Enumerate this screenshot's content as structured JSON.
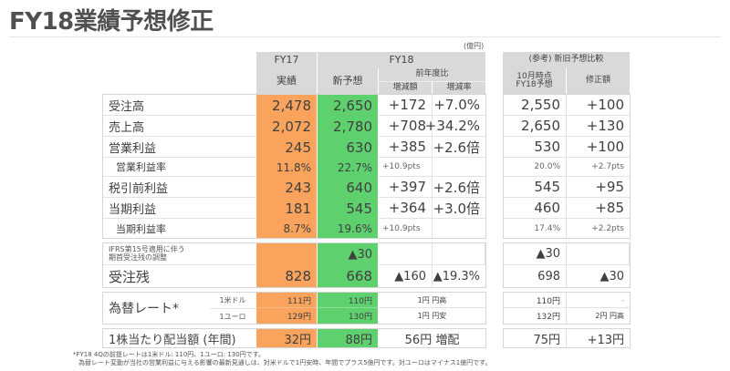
{
  "title": "FY18業績予想修正",
  "unit": "(億円)",
  "header": {
    "fy17": "FY17",
    "fy17_sub": "実績",
    "fy18": "FY18",
    "new_forecast": "新予想",
    "yoy": "前年度比",
    "change_amount": "増減額",
    "change_rate": "増減率",
    "reference": "(参考) 新旧予想比較",
    "oct_forecast_line1": "10月時点",
    "oct_forecast_line2": "FY18予想",
    "revision": "修正額"
  },
  "rows": [
    {
      "label": "受注高",
      "fy17": "2,478",
      "fy18": "2,650",
      "diff": "+172",
      "rate": "+7.0%",
      "oct": "2,550",
      "rev": "+100"
    },
    {
      "label": "売上高",
      "fy17": "2,072",
      "fy18": "2,780",
      "diff": "+708",
      "rate": "+34.2%",
      "oct": "2,650",
      "rev": "+130"
    },
    {
      "label": "営業利益",
      "fy17": "245",
      "fy18": "630",
      "diff": "+385",
      "rate": "+2.6倍",
      "oct": "530",
      "rev": "+100"
    },
    {
      "label": "営業利益率",
      "fy17": "11.8%",
      "fy18": "22.7%",
      "diff": "+10.9pts",
      "rate": "",
      "oct": "20.0%",
      "rev": "+2.7pts"
    },
    {
      "label": "税引前利益",
      "fy17": "243",
      "fy18": "640",
      "diff": "+397",
      "rate": "+2.6倍",
      "oct": "545",
      "rev": "+95"
    },
    {
      "label": "当期利益",
      "fy17": "181",
      "fy18": "545",
      "diff": "+364",
      "rate": "+3.0倍",
      "oct": "460",
      "rev": "+85"
    },
    {
      "label": "当期利益率",
      "fy17": "8.7%",
      "fy18": "19.6%",
      "diff": "+10.9pts",
      "rate": "",
      "oct": "17.4%",
      "rev": "+2.2pts"
    }
  ],
  "ifrs": {
    "label_line1": "IFRS第15号適用に伴う",
    "label_line2": "期首受注残の調整",
    "fy17": "",
    "fy18": "▲30",
    "diff": "",
    "rate": "",
    "oct": "▲30",
    "rev": ""
  },
  "backlog": {
    "label": "受注残",
    "fy17": "828",
    "fy18": "668",
    "diff": "▲160",
    "rate": "▲19.3%",
    "oct": "698",
    "rev": "▲30"
  },
  "fx": {
    "label": "為替レート*",
    "usd_label": "1米ドル",
    "eur_label": "1ユーロ",
    "usd": {
      "fy17": "111円",
      "fy18": "110円",
      "diff": "1円 円高",
      "oct": "110円",
      "rev": "-"
    },
    "eur": {
      "fy17": "129円",
      "fy18": "130円",
      "diff": "1円 円安",
      "oct": "132円",
      "rev": "2円 円高"
    }
  },
  "dividend": {
    "label": "1株当たり配当額 (年間)",
    "fy17": "32円",
    "fy18": "88円",
    "diff": "56円 増配",
    "oct": "75円",
    "rev": "+13円"
  },
  "footnotes": [
    "*FY18 4Qの前提レートは1米ドル: 110円、1ユーロ: 130円です。",
    "為替レート変動が当社の営業利益に与える影響の最新見通しは、対米ドルで1円安時、年間でプラス5億円です。対ユーロはマイナス1億円です。"
  ],
  "colors": {
    "fy17": "#f9a35c",
    "fy18": "#5fd06e",
    "header": "#d9d9d9"
  }
}
